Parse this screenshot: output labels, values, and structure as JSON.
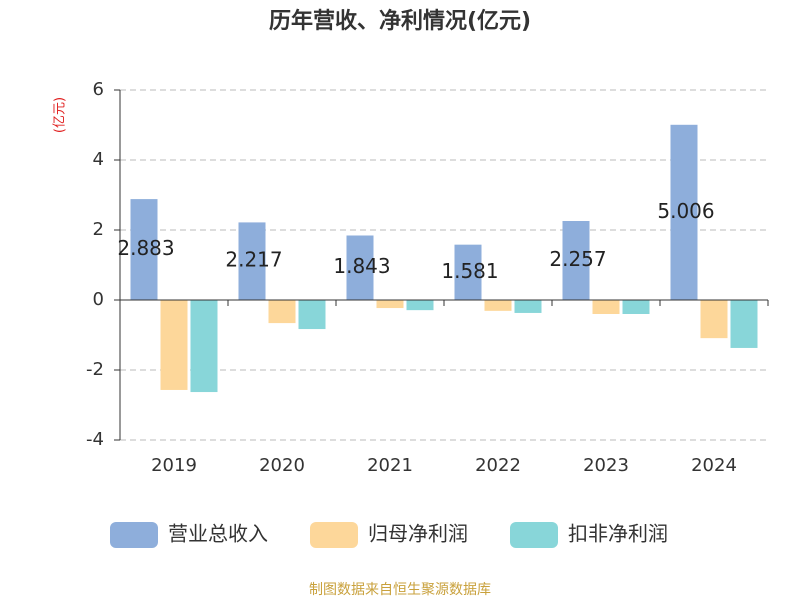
{
  "chart_data": {
    "type": "bar",
    "title": "历年营收、净利情况(亿元)",
    "y_label": "(亿元)",
    "categories": [
      "2019",
      "2020",
      "2021",
      "2022",
      "2023",
      "2024"
    ],
    "series": [
      {
        "name": "营业总收入",
        "color": "#8eaedb",
        "values": [
          2.883,
          2.217,
          1.843,
          1.581,
          2.257,
          5.006
        ]
      },
      {
        "name": "归母净利润",
        "color": "#fdd79a",
        "values": [
          -2.57,
          -0.66,
          -0.23,
          -0.31,
          -0.4,
          -1.09
        ]
      },
      {
        "name": "扣非净利润",
        "color": "#88d6d9",
        "values": [
          -2.63,
          -0.83,
          -0.29,
          -0.37,
          -0.4,
          -1.37
        ]
      }
    ],
    "data_labels_series": 0,
    "ylim": [
      -4,
      6
    ],
    "yticks": [
      -4,
      -2,
      0,
      2,
      4,
      6
    ],
    "grid": true,
    "source": "制图数据来自恒生聚源数据库"
  }
}
